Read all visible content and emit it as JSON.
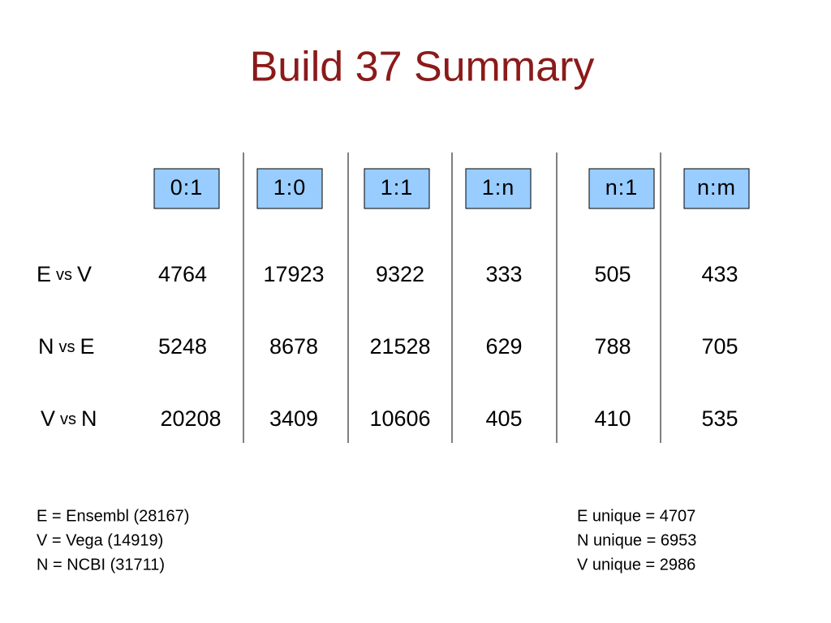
{
  "header": {
    "title": "Build 37 Summary"
  },
  "table": {
    "columns": [
      "0:1",
      "1:0",
      "1:1",
      "1:n",
      "n:1",
      "n:m"
    ],
    "rows": [
      {
        "label": [
          "E",
          "vs",
          "V"
        ],
        "values": [
          4764,
          17923,
          9322,
          333,
          505,
          433
        ]
      },
      {
        "label": [
          "N",
          "vs",
          "E"
        ],
        "values": [
          5248,
          8678,
          21528,
          629,
          788,
          705
        ]
      },
      {
        "label": [
          "V",
          "vs",
          "N"
        ],
        "values": [
          20208,
          3409,
          10606,
          405,
          410,
          535
        ]
      }
    ]
  },
  "notes": {
    "left": [
      "E = Ensembl (28167)",
      "V = Vega (14919)",
      "N = NCBI (31711)"
    ],
    "right": [
      "E unique = 4707",
      "N unique = 6953",
      "V unique = 2986"
    ]
  }
}
